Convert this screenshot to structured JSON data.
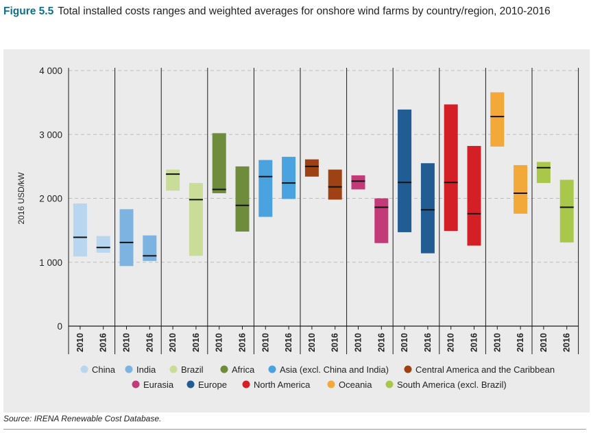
{
  "figure": {
    "label": "Figure 5.5",
    "title": "Total installed costs ranges and weighted averages for onshore wind farms by country/region, 2010-2016",
    "source": "Source: IRENA Renewable Cost Database."
  },
  "chart_data": {
    "type": "floating-bar-range",
    "ylabel": "2016 USD/kW",
    "ylim": [
      0,
      4000
    ],
    "yticks": [
      0,
      1000,
      2000,
      3000,
      4000
    ],
    "ytick_labels": [
      "0",
      "1 000",
      "2 000",
      "3 000",
      "4 000"
    ],
    "grid": "dashed-horizontal",
    "legend_position": "bottom",
    "categories": [
      "2010",
      "2016",
      "2010",
      "2016",
      "2010",
      "2016",
      "2010",
      "2016",
      "2010",
      "2016",
      "2010",
      "2016",
      "2010",
      "2016",
      "2010",
      "2016",
      "2010",
      "2016",
      "2010",
      "2016",
      "2010",
      "2016"
    ],
    "series": [
      {
        "name": "China",
        "color": "#b9d6f0",
        "values": [
          {
            "year": "2010",
            "low": 1090,
            "high": 1920,
            "avg": 1390
          },
          {
            "year": "2016",
            "low": 1150,
            "high": 1410,
            "avg": 1230
          }
        ]
      },
      {
        "name": "India",
        "color": "#7db3e1",
        "values": [
          {
            "year": "2010",
            "low": 940,
            "high": 1830,
            "avg": 1310
          },
          {
            "year": "2016",
            "low": 1020,
            "high": 1420,
            "avg": 1100
          }
        ]
      },
      {
        "name": "Brazil",
        "color": "#c9dd98",
        "values": [
          {
            "year": "2010",
            "low": 2120,
            "high": 2450,
            "avg": 2380
          },
          {
            "year": "2016",
            "low": 1100,
            "high": 2240,
            "avg": 1980
          }
        ]
      },
      {
        "name": "Africa",
        "color": "#6e8c3c",
        "values": [
          {
            "year": "2010",
            "low": 2080,
            "high": 3020,
            "avg": 2140
          },
          {
            "year": "2016",
            "low": 1480,
            "high": 2500,
            "avg": 1890
          }
        ]
      },
      {
        "name": "Asia (excl. China and India)",
        "color": "#4aa3df",
        "values": [
          {
            "year": "2010",
            "low": 1710,
            "high": 2600,
            "avg": 2340
          },
          {
            "year": "2016",
            "low": 1990,
            "high": 2650,
            "avg": 2240
          }
        ]
      },
      {
        "name": "Central America and the Caribbean",
        "color": "#9e4215",
        "values": [
          {
            "year": "2010",
            "low": 2340,
            "high": 2610,
            "avg": 2500
          },
          {
            "year": "2016",
            "low": 1980,
            "high": 2450,
            "avg": 2180
          }
        ]
      },
      {
        "name": "Eurasia",
        "color": "#c23a78",
        "values": [
          {
            "year": "2010",
            "low": 2140,
            "high": 2360,
            "avg": 2270
          },
          {
            "year": "2016",
            "low": 1300,
            "high": 2000,
            "avg": 1860
          }
        ]
      },
      {
        "name": "Europe",
        "color": "#215d92",
        "values": [
          {
            "year": "2010",
            "low": 1470,
            "high": 3390,
            "avg": 2250
          },
          {
            "year": "2016",
            "low": 1140,
            "high": 2550,
            "avg": 1820
          }
        ]
      },
      {
        "name": "North America",
        "color": "#d51f26",
        "values": [
          {
            "year": "2010",
            "low": 1490,
            "high": 3470,
            "avg": 2250
          },
          {
            "year": "2016",
            "low": 1260,
            "high": 2820,
            "avg": 1760
          }
        ]
      },
      {
        "name": "Oceania",
        "color": "#f2a93a",
        "values": [
          {
            "year": "2010",
            "low": 2810,
            "high": 3660,
            "avg": 3280
          },
          {
            "year": "2016",
            "low": 1760,
            "high": 2520,
            "avg": 2080
          }
        ]
      },
      {
        "name": "South America (excl. Brazil)",
        "color": "#a9c74b",
        "values": [
          {
            "year": "2010",
            "low": 2240,
            "high": 2570,
            "avg": 2480
          },
          {
            "year": "2016",
            "low": 1310,
            "high": 2290,
            "avg": 1860
          }
        ]
      }
    ]
  }
}
